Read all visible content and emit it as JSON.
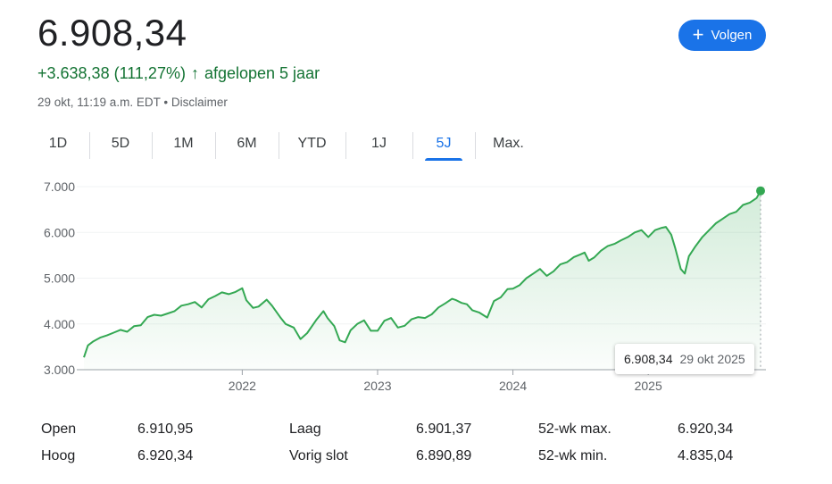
{
  "quote": {
    "price": "6.908,34",
    "change": "+3.638,38 (111,27%)",
    "change_arrow": "↑",
    "period": "afgelopen 5 jaar",
    "timestamp": "29 okt, 11:19 a.m. EDT",
    "separator": "•",
    "disclaimer": "Disclaimer",
    "follow_label": "Volgen",
    "follow_icon": "plus-icon",
    "accent": "#1a73e8",
    "positive_color": "#137333",
    "line_color": "#34a853"
  },
  "tabs": [
    {
      "label": "1D",
      "active": false
    },
    {
      "label": "5D",
      "active": false
    },
    {
      "label": "1M",
      "active": false
    },
    {
      "label": "6M",
      "active": false
    },
    {
      "label": "YTD",
      "active": false
    },
    {
      "label": "1J",
      "active": false
    },
    {
      "label": "5J",
      "active": true
    },
    {
      "label": "Max.",
      "active": false
    }
  ],
  "tooltip": {
    "value": "6.908,34",
    "date": "29 okt 2025"
  },
  "chart_data": {
    "type": "area",
    "title": "",
    "xlabel": "",
    "ylabel": "",
    "ylim": [
      3000,
      7000
    ],
    "xlim": [
      2020.83,
      2025.83
    ],
    "y_ticks": [
      {
        "value": 3000,
        "label": "3.000"
      },
      {
        "value": 4000,
        "label": "4.000"
      },
      {
        "value": 5000,
        "label": "5.000"
      },
      {
        "value": 6000,
        "label": "6.000"
      },
      {
        "value": 7000,
        "label": "7.000"
      }
    ],
    "x_ticks": [
      {
        "value": 2022.0,
        "label": "2022"
      },
      {
        "value": 2023.0,
        "label": "2023"
      },
      {
        "value": 2024.0,
        "label": "2024"
      },
      {
        "value": 2025.0,
        "label": "2025"
      }
    ],
    "grid": true,
    "series": [
      {
        "name": "",
        "points": [
          [
            2020.83,
            3270
          ],
          [
            2020.86,
            3530
          ],
          [
            2020.9,
            3620
          ],
          [
            2020.95,
            3700
          ],
          [
            2021.0,
            3750
          ],
          [
            2021.05,
            3810
          ],
          [
            2021.1,
            3870
          ],
          [
            2021.15,
            3830
          ],
          [
            2021.2,
            3950
          ],
          [
            2021.25,
            3970
          ],
          [
            2021.3,
            4150
          ],
          [
            2021.35,
            4200
          ],
          [
            2021.4,
            4180
          ],
          [
            2021.45,
            4230
          ],
          [
            2021.5,
            4280
          ],
          [
            2021.55,
            4400
          ],
          [
            2021.6,
            4430
          ],
          [
            2021.65,
            4480
          ],
          [
            2021.7,
            4360
          ],
          [
            2021.75,
            4540
          ],
          [
            2021.8,
            4610
          ],
          [
            2021.85,
            4690
          ],
          [
            2021.9,
            4650
          ],
          [
            2021.95,
            4700
          ],
          [
            2022.0,
            4780
          ],
          [
            2022.03,
            4520
          ],
          [
            2022.08,
            4350
          ],
          [
            2022.12,
            4380
          ],
          [
            2022.18,
            4530
          ],
          [
            2022.22,
            4400
          ],
          [
            2022.28,
            4150
          ],
          [
            2022.32,
            4000
          ],
          [
            2022.38,
            3920
          ],
          [
            2022.43,
            3670
          ],
          [
            2022.48,
            3800
          ],
          [
            2022.55,
            4100
          ],
          [
            2022.6,
            4280
          ],
          [
            2022.63,
            4130
          ],
          [
            2022.68,
            3950
          ],
          [
            2022.72,
            3640
          ],
          [
            2022.76,
            3600
          ],
          [
            2022.8,
            3860
          ],
          [
            2022.85,
            4000
          ],
          [
            2022.9,
            4080
          ],
          [
            2022.95,
            3850
          ],
          [
            2023.0,
            3850
          ],
          [
            2023.05,
            4070
          ],
          [
            2023.1,
            4130
          ],
          [
            2023.15,
            3920
          ],
          [
            2023.2,
            3960
          ],
          [
            2023.25,
            4100
          ],
          [
            2023.3,
            4150
          ],
          [
            2023.35,
            4130
          ],
          [
            2023.4,
            4210
          ],
          [
            2023.45,
            4360
          ],
          [
            2023.5,
            4450
          ],
          [
            2023.55,
            4550
          ],
          [
            2023.58,
            4520
          ],
          [
            2023.62,
            4460
          ],
          [
            2023.66,
            4430
          ],
          [
            2023.7,
            4300
          ],
          [
            2023.75,
            4250
          ],
          [
            2023.81,
            4140
          ],
          [
            2023.86,
            4500
          ],
          [
            2023.91,
            4580
          ],
          [
            2023.96,
            4760
          ],
          [
            2024.0,
            4770
          ],
          [
            2024.05,
            4850
          ],
          [
            2024.1,
            5000
          ],
          [
            2024.15,
            5100
          ],
          [
            2024.2,
            5200
          ],
          [
            2024.25,
            5050
          ],
          [
            2024.3,
            5150
          ],
          [
            2024.35,
            5300
          ],
          [
            2024.4,
            5350
          ],
          [
            2024.45,
            5460
          ],
          [
            2024.5,
            5520
          ],
          [
            2024.53,
            5560
          ],
          [
            2024.56,
            5380
          ],
          [
            2024.6,
            5450
          ],
          [
            2024.65,
            5600
          ],
          [
            2024.7,
            5700
          ],
          [
            2024.75,
            5750
          ],
          [
            2024.8,
            5830
          ],
          [
            2024.85,
            5900
          ],
          [
            2024.9,
            6000
          ],
          [
            2024.95,
            6050
          ],
          [
            2025.0,
            5900
          ],
          [
            2025.05,
            6050
          ],
          [
            2025.1,
            6100
          ],
          [
            2025.13,
            6120
          ],
          [
            2025.17,
            5950
          ],
          [
            2025.2,
            5650
          ],
          [
            2025.24,
            5200
          ],
          [
            2025.27,
            5100
          ],
          [
            2025.3,
            5480
          ],
          [
            2025.35,
            5700
          ],
          [
            2025.4,
            5900
          ],
          [
            2025.45,
            6050
          ],
          [
            2025.5,
            6200
          ],
          [
            2025.55,
            6300
          ],
          [
            2025.6,
            6400
          ],
          [
            2025.65,
            6450
          ],
          [
            2025.7,
            6600
          ],
          [
            2025.75,
            6650
          ],
          [
            2025.8,
            6750
          ],
          [
            2025.83,
            6908
          ]
        ]
      }
    ],
    "last_point": {
      "x": 2025.83,
      "y": 6908.34
    }
  },
  "stats": [
    {
      "label": "Open",
      "value": "6.910,95"
    },
    {
      "label": "Hoog",
      "value": "6.920,34"
    },
    {
      "label": "Laag",
      "value": "6.901,37"
    },
    {
      "label": "Vorig slot",
      "value": "6.890,89"
    },
    {
      "label": "52-wk max.",
      "value": "6.920,34"
    },
    {
      "label": "52-wk min.",
      "value": "4.835,04"
    }
  ]
}
